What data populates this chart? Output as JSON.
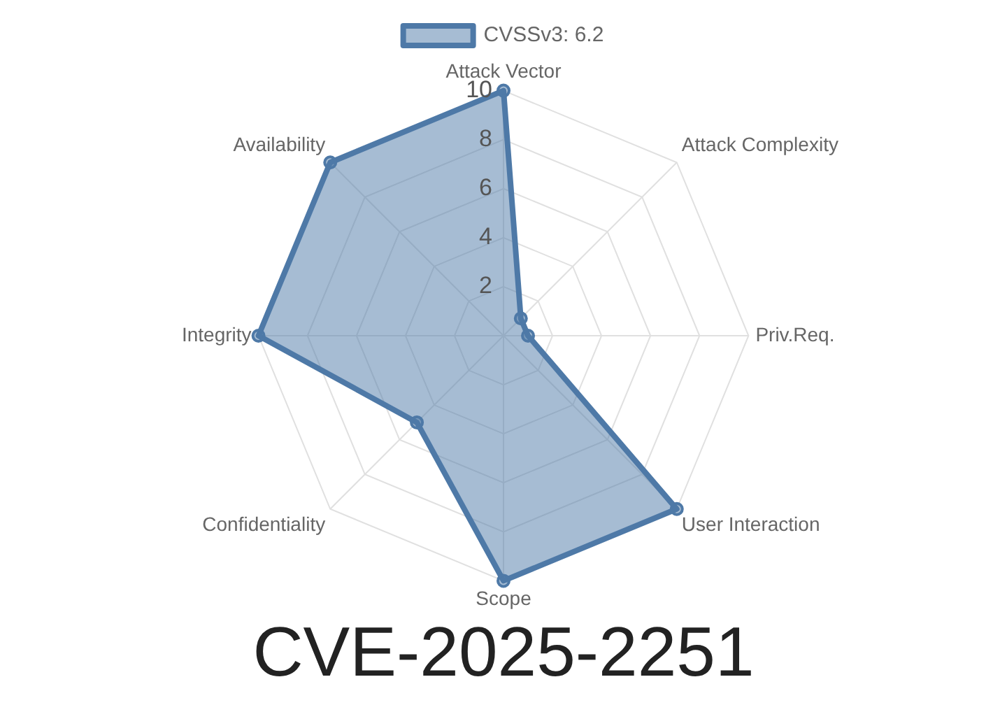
{
  "chart_data": {
    "type": "radar",
    "title": "CVE-2025-2251",
    "categories": [
      "Attack Vector",
      "Attack Complexity",
      "Priv.Req.",
      "User Interaction",
      "Scope",
      "Confidentiality",
      "Integrity",
      "Availability"
    ],
    "series": [
      {
        "name": "CVSSv3: 6.2",
        "color": "#4e79a7",
        "values": [
          10,
          1,
          1,
          10,
          10,
          5,
          10,
          10
        ]
      }
    ],
    "ylim": [
      0,
      10
    ],
    "yticks": [
      2,
      4,
      6,
      8,
      10
    ],
    "grid": true,
    "legend": "top",
    "marker": "circle"
  }
}
